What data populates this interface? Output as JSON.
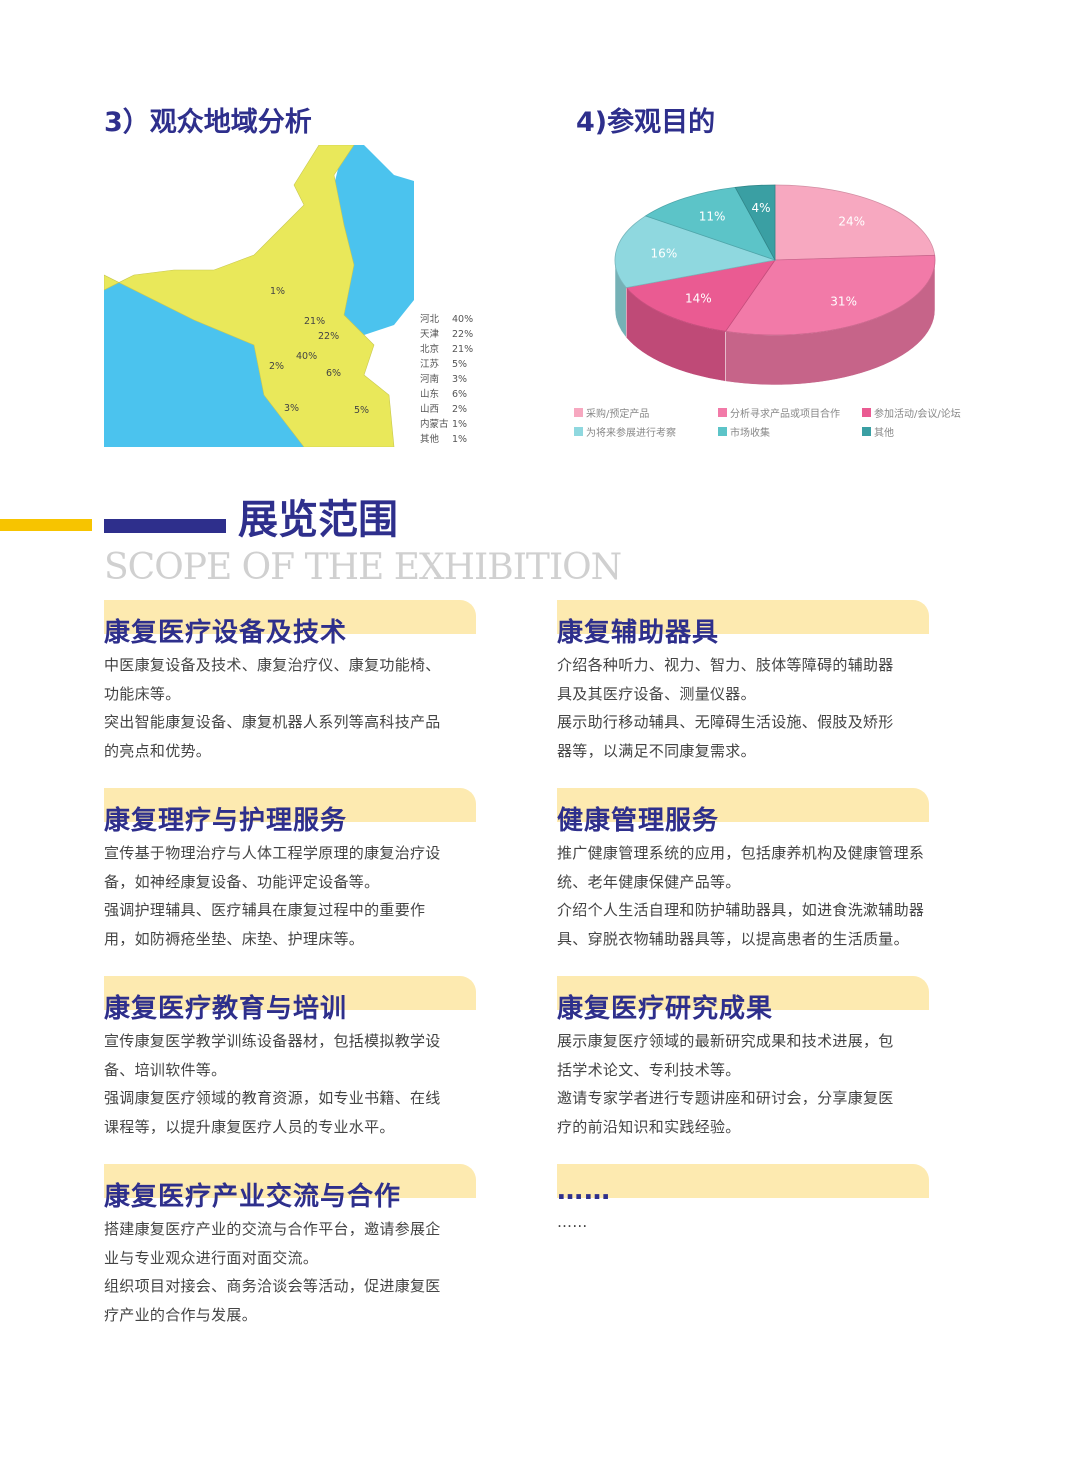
{
  "map_section": {
    "title": "3）观众地域分析",
    "map_labels": [
      "1%",
      "21%",
      "22%",
      "40%",
      "2%",
      "6%",
      "3%",
      "5%"
    ],
    "legend": [
      {
        "region": "河北",
        "value": "40%"
      },
      {
        "region": "天津",
        "value": "22%"
      },
      {
        "region": "北京",
        "value": "21%"
      },
      {
        "region": "江苏",
        "value": "5%"
      },
      {
        "region": "河南",
        "value": "3%"
      },
      {
        "region": "山东",
        "value": "6%"
      },
      {
        "region": "山西",
        "value": "2%"
      },
      {
        "region": "内蒙古",
        "value": "1%"
      },
      {
        "region": "其他",
        "value": "1%"
      }
    ],
    "colors": {
      "highlight": "#e9e85a",
      "other": "#4bc3ee"
    }
  },
  "chart_data": {
    "type": "pie",
    "title": "4)参观目的",
    "slices": [
      {
        "name": "采购/预定产品",
        "value": 24,
        "label": "24%",
        "color": "#f7a8c0"
      },
      {
        "name": "分析寻求产品或项目合作",
        "value": 31,
        "label": "31%",
        "color": "#f27aa8"
      },
      {
        "name": "参加活动/会议/论坛",
        "value": 14,
        "label": "14%",
        "color": "#ea5b92"
      },
      {
        "name": "为将来参展进行考察",
        "value": 16,
        "label": "16%",
        "color": "#8fd8df"
      },
      {
        "name": "市场收集",
        "value": 11,
        "label": "11%",
        "color": "#5cc4c8"
      },
      {
        "name": "其他",
        "value": 4,
        "label": "4%",
        "color": "#3a9fa3"
      }
    ],
    "legend_placement": "bottom"
  },
  "scope": {
    "title": "展览范围",
    "subtitle": "SCOPE OF THE EXHIBITION",
    "cards": [
      {
        "title": "康复医疗设备及技术",
        "lines": [
          "中医康复设备及技术、康复治疗仪、康复功能椅、",
          "功能床等。",
          "突出智能康复设备、康复机器人系列等高科技产品",
          "的亮点和优势。"
        ]
      },
      {
        "title": "康复辅助器具",
        "lines": [
          "介绍各种听力、视力、智力、肢体等障碍的辅助器",
          "具及其医疗设备、测量仪器。",
          "展示助行移动辅具、无障碍生活设施、假肢及矫形",
          "器等，以满足不同康复需求。"
        ]
      },
      {
        "title": "康复理疗与护理服务",
        "lines": [
          "宣传基于物理治疗与人体工程学原理的康复治疗设",
          "备，如神经康复设备、功能评定设备等。",
          "强调护理辅具、医疗辅具在康复过程中的重要作",
          "用，如防褥疮坐垫、床垫、护理床等。"
        ]
      },
      {
        "title": "健康管理服务",
        "lines": [
          "推广健康管理系统的应用，包括康养机构及健康管理系",
          "统、老年健康保健产品等。",
          "介绍个人生活自理和防护辅助器具，如进食洗漱辅助器",
          "具、穿脱衣物辅助器具等，以提高患者的生活质量。"
        ]
      },
      {
        "title": "康复医疗教育与培训",
        "lines": [
          "宣传康复医学教学训练设备器材，包括模拟教学设",
          "备、培训软件等。",
          "强调康复医疗领域的教育资源，如专业书籍、在线",
          "课程等，以提升康复医疗人员的专业水平。"
        ]
      },
      {
        "title": "康复医疗研究成果",
        "lines": [
          "展示康复医疗领域的最新研究成果和技术进展，包",
          "括学术论文、专利技术等。",
          "邀请专家学者进行专题讲座和研讨会，分享康复医",
          "疗的前沿知识和实践经验。"
        ]
      },
      {
        "title": "康复医疗产业交流与合作",
        "lines": [
          "搭建康复医疗产业的交流与合作平台，邀请参展企",
          "业与专业观众进行面对面交流。",
          "组织项目对接会、商务洽谈会等活动，促进康复医",
          "疗产业的合作与发展。"
        ]
      },
      {
        "title": "……",
        "lines": [
          "……"
        ]
      }
    ]
  }
}
